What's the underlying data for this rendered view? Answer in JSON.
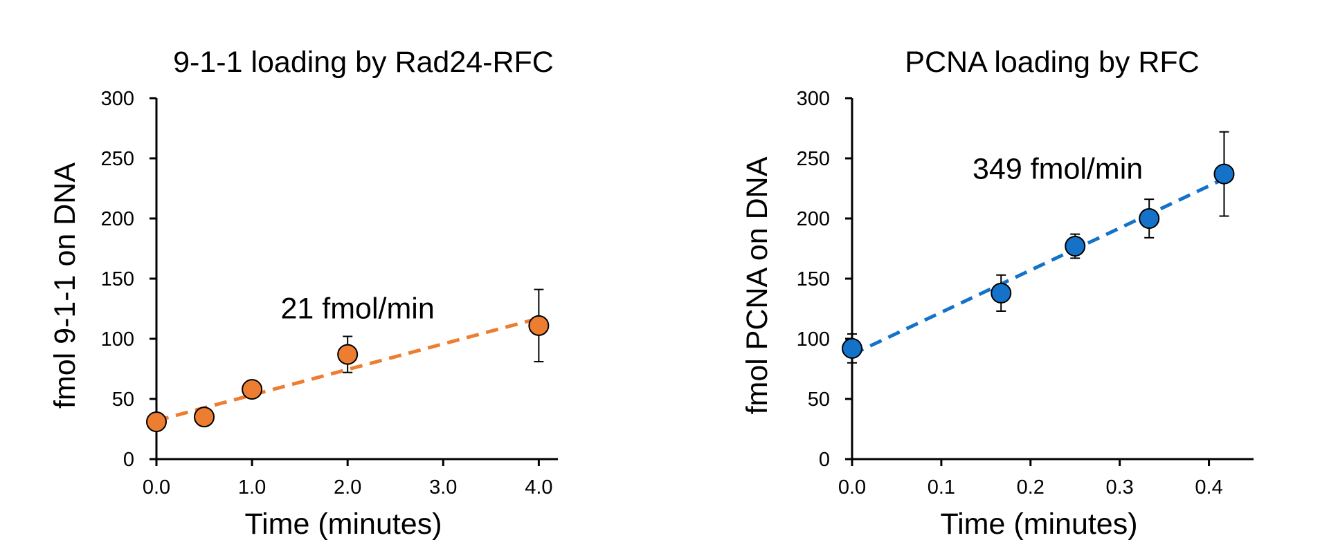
{
  "chart_data": [
    {
      "type": "scatter",
      "title": "9-1-1 loading by Rad24-RFC",
      "xlabel": "Time (minutes)",
      "ylabel": "fmol 9-1-1 on DNA",
      "xlim": [
        0,
        4.2
      ],
      "ylim": [
        0,
        300
      ],
      "xticks": [
        "0.0",
        "1.0",
        "2.0",
        "3.0",
        "4.0"
      ],
      "xtick_values": [
        0,
        1,
        2,
        3,
        4
      ],
      "yticks": [
        "0",
        "50",
        "100",
        "150",
        "200",
        "250",
        "300"
      ],
      "ytick_values": [
        0,
        50,
        100,
        150,
        200,
        250,
        300
      ],
      "series": [
        {
          "x": [
            0,
            0.5,
            1,
            2,
            4
          ],
          "y": [
            31,
            35,
            58,
            87,
            111
          ],
          "error": [
            0,
            0,
            0,
            15,
            30
          ],
          "color": "#ED7D31"
        }
      ],
      "trendline": {
        "x": [
          0,
          4
        ],
        "y": [
          32,
          117
        ],
        "color": "#ED7D31",
        "style": "dashed"
      },
      "annotation": {
        "text": "21 fmol/min",
        "x": 1.3,
        "y": 117
      },
      "grid": false
    },
    {
      "type": "scatter",
      "title": "PCNA loading by RFC",
      "xlabel": "Time (minutes)",
      "ylabel": "fmol PCNA on DNA",
      "xlim": [
        0,
        0.45
      ],
      "ylim": [
        0,
        300
      ],
      "xticks": [
        "0.0",
        "0.1",
        "0.2",
        "0.3",
        "0.4"
      ],
      "xtick_values": [
        0,
        0.1,
        0.2,
        0.3,
        0.4
      ],
      "yticks": [
        "0",
        "50",
        "100",
        "150",
        "200",
        "250",
        "300"
      ],
      "ytick_values": [
        0,
        50,
        100,
        150,
        200,
        250,
        300
      ],
      "series": [
        {
          "x": [
            0,
            0.167,
            0.25,
            0.333,
            0.417
          ],
          "y": [
            92,
            138,
            177,
            200,
            237
          ],
          "error": [
            12,
            15,
            10,
            16,
            35
          ],
          "color": "#1473C9"
        }
      ],
      "trendline": {
        "x": [
          0,
          0.417
        ],
        "y": [
          87,
          233
        ],
        "color": "#1473C9",
        "style": "dashed"
      },
      "annotation": {
        "text": "349 fmol/min",
        "x": 0.135,
        "y": 233
      },
      "grid": false
    }
  ]
}
